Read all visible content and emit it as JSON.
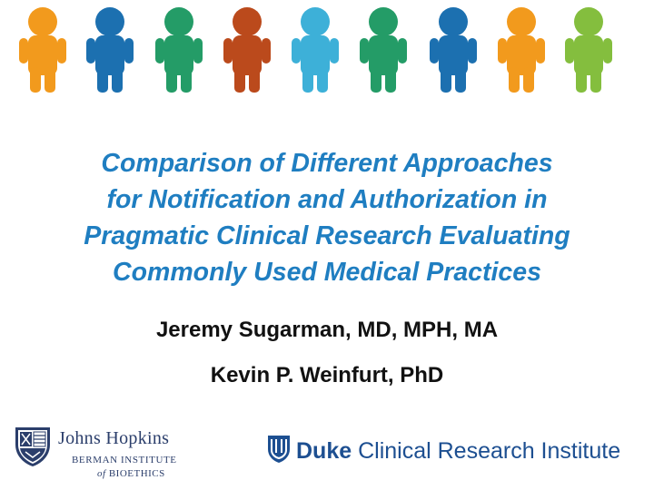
{
  "people": [
    {
      "color": "#f29a1d"
    },
    {
      "color": "#1c70b0"
    },
    {
      "color": "#249c67"
    },
    {
      "color": "#bb4a1c"
    },
    {
      "color": "#3db0d8"
    },
    {
      "color": "#249c67"
    },
    {
      "color": "#1c70b0"
    },
    {
      "color": "#f29a1d"
    },
    {
      "color": "#84be3e"
    }
  ],
  "title": {
    "line1": "Comparison of Different Approaches",
    "line2": "for Notification and Authorization in",
    "line3": "Pragmatic Clinical Research Evaluating",
    "line4": "Commonly Used Medical Practices"
  },
  "authors": [
    "Jeremy Sugarman, MD, MPH, MA",
    "Kevin P. Weinfurt, PhD"
  ],
  "logos": {
    "jh_name": "Johns Hopkins",
    "jh_sub1": "BERMAN INSTITUTE",
    "jh_sub2_of": "of",
    "jh_sub2_rest": " BIOETHICS",
    "duke_bold": "Duke",
    "duke_rest": " Clinical Research Institute"
  },
  "colors": {
    "title": "#1f7ec1",
    "jh_navy": "#2b3e6b",
    "duke_blue": "#1d4f91"
  }
}
